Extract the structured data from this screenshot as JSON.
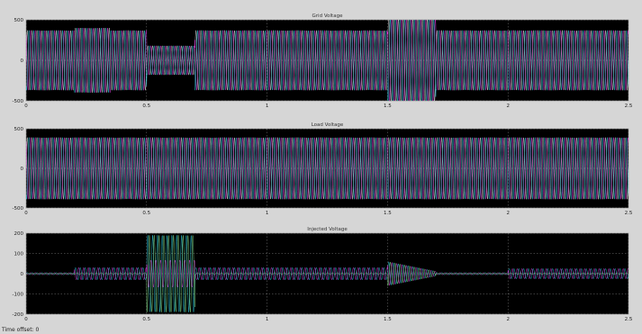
{
  "window": {
    "status_text": "Time offset:  0"
  },
  "panels": [
    {
      "title": "Grid Voltage",
      "yticks": [
        "500",
        "0",
        "-500"
      ],
      "xticks": [
        "0",
        "0.5",
        "1",
        "1.5",
        "2",
        "2.5"
      ]
    },
    {
      "title": "Load Voltage",
      "yticks": [
        "500",
        "0",
        "-500"
      ],
      "xticks": [
        "0",
        "0.5",
        "1",
        "1.5",
        "2",
        "2.5"
      ]
    },
    {
      "title": "Injected Voltage",
      "yticks": [
        "200",
        "100",
        "0",
        "-100",
        "-200"
      ],
      "xticks": [
        "0",
        "0.5",
        "1",
        "1.5",
        "2",
        "2.5"
      ]
    }
  ],
  "colors": {
    "background": "#d6d6d6",
    "axes_background": "#000000",
    "grid": "#c8c8c8",
    "phase_a": "#ffff66",
    "phase_b": "#ff44ff",
    "phase_c": "#33e6ff",
    "white_trace": "#ffffff",
    "green_trace": "#9dff9d"
  },
  "chart_data": [
    {
      "type": "line",
      "title": "Grid Voltage",
      "xlim": [
        0,
        2.5
      ],
      "ylim": [
        -500,
        500
      ],
      "grid": true,
      "series_count": 3,
      "envelope": [
        {
          "x": [
            0,
            0.2
          ],
          "amplitude": 370
        },
        {
          "x": [
            0.2,
            0.35
          ],
          "amplitude": 400
        },
        {
          "x": [
            0.35,
            0.5
          ],
          "amplitude": 370
        },
        {
          "x": [
            0.5,
            0.7
          ],
          "amplitude": 180
        },
        {
          "x": [
            0.7,
            1.5
          ],
          "amplitude": 370
        },
        {
          "x": [
            1.5,
            1.7
          ],
          "amplitude": 520
        },
        {
          "x": [
            1.7,
            2.5
          ],
          "amplitude": 370
        }
      ]
    },
    {
      "type": "line",
      "title": "Load Voltage",
      "xlim": [
        0,
        2.5
      ],
      "ylim": [
        -500,
        500
      ],
      "grid": true,
      "series_count": 3,
      "envelope": [
        {
          "x": [
            0,
            2.5
          ],
          "amplitude": 390
        }
      ]
    },
    {
      "type": "line",
      "title": "Injected Voltage",
      "xlim": [
        0,
        2.5
      ],
      "ylim": [
        -200,
        200
      ],
      "grid": true,
      "series_count": 3,
      "envelope": [
        {
          "x": [
            0,
            0.2
          ],
          "amplitude": 5
        },
        {
          "x": [
            0.2,
            0.5
          ],
          "amplitude": 30
        },
        {
          "x": [
            0.5,
            0.7
          ],
          "amplitude": 190
        },
        {
          "x": [
            0.7,
            1.5
          ],
          "amplitude": 30
        },
        {
          "x": [
            1.5,
            1.7
          ],
          "amplitude": 60
        },
        {
          "x": [
            1.7,
            2.0
          ],
          "amplitude": 5
        },
        {
          "x": [
            2.0,
            2.5
          ],
          "amplitude": 25
        }
      ]
    }
  ]
}
